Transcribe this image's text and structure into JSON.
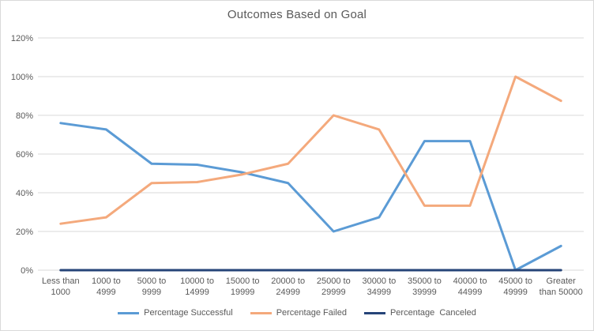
{
  "chart_data": {
    "type": "line",
    "title": "Outcomes Based on Goal",
    "categories": [
      "Less than 1000",
      "1000 to 4999",
      "5000 to 9999",
      "10000 to 14999",
      "15000 to 19999",
      "20000 to 24999",
      "25000 to 29999",
      "30000 to 34999",
      "35000 to 39999",
      "40000 to 44999",
      "45000 to 49999",
      "Greater than 50000"
    ],
    "category_label_lines": [
      [
        "Less than",
        "1000"
      ],
      [
        "1000 to",
        "4999"
      ],
      [
        "5000 to",
        "9999"
      ],
      [
        "10000 to",
        "14999"
      ],
      [
        "15000 to",
        "19999"
      ],
      [
        "20000 to",
        "24999"
      ],
      [
        "25000 to",
        "29999"
      ],
      [
        "30000 to",
        "34999"
      ],
      [
        "35000 to",
        "39999"
      ],
      [
        "40000 to",
        "44999"
      ],
      [
        "45000 to",
        "49999"
      ],
      [
        "Greater",
        "than 50000"
      ]
    ],
    "series": [
      {
        "name": "Percentage Successful",
        "color": "#5B9BD5",
        "values": [
          76,
          72.7,
          55,
          54.5,
          50.5,
          45,
          20,
          27.3,
          66.7,
          66.7,
          0,
          12.5
        ]
      },
      {
        "name": "Percentage Failed",
        "color": "#F4A97C",
        "values": [
          24,
          27.3,
          45,
          45.5,
          49.5,
          55,
          80,
          72.7,
          33.3,
          33.3,
          100,
          87.5
        ]
      },
      {
        "name": "Percentage  Canceled",
        "color": "#264478",
        "values": [
          0,
          0,
          0,
          0,
          0,
          0,
          0,
          0,
          0,
          0,
          0,
          0
        ]
      }
    ],
    "ylim": [
      0,
      120
    ],
    "yticks": [
      0,
      20,
      40,
      60,
      80,
      100,
      120
    ],
    "ytick_labels": [
      "0%",
      "20%",
      "40%",
      "60%",
      "80%",
      "100%",
      "120%"
    ],
    "grid": true,
    "legend_position": "bottom",
    "colors": {
      "grid": "#D9D9D9",
      "axis_text": "#595959",
      "title_text": "#595959",
      "frame_border": "#D9D9D9",
      "background": "#FFFFFF"
    }
  }
}
